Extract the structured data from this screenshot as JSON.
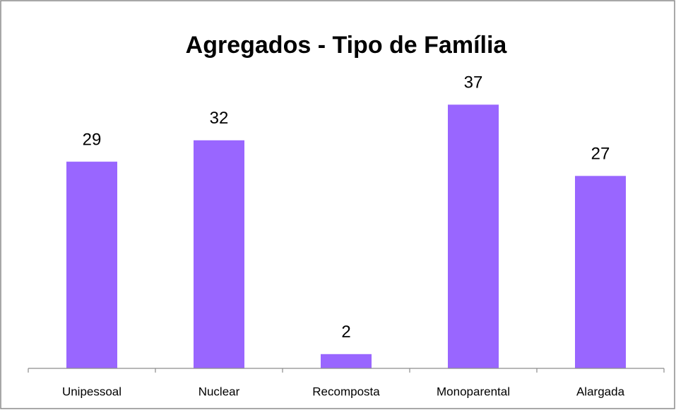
{
  "chart_data": {
    "type": "bar",
    "title": "Agregados - Tipo de Família",
    "categories": [
      "Unipessoal",
      "Nuclear",
      "Recomposta",
      "Monoparental",
      "Alargada"
    ],
    "values": [
      29,
      32,
      2,
      37,
      27
    ],
    "color": "#9966ff",
    "ylim": [
      0,
      40
    ]
  }
}
